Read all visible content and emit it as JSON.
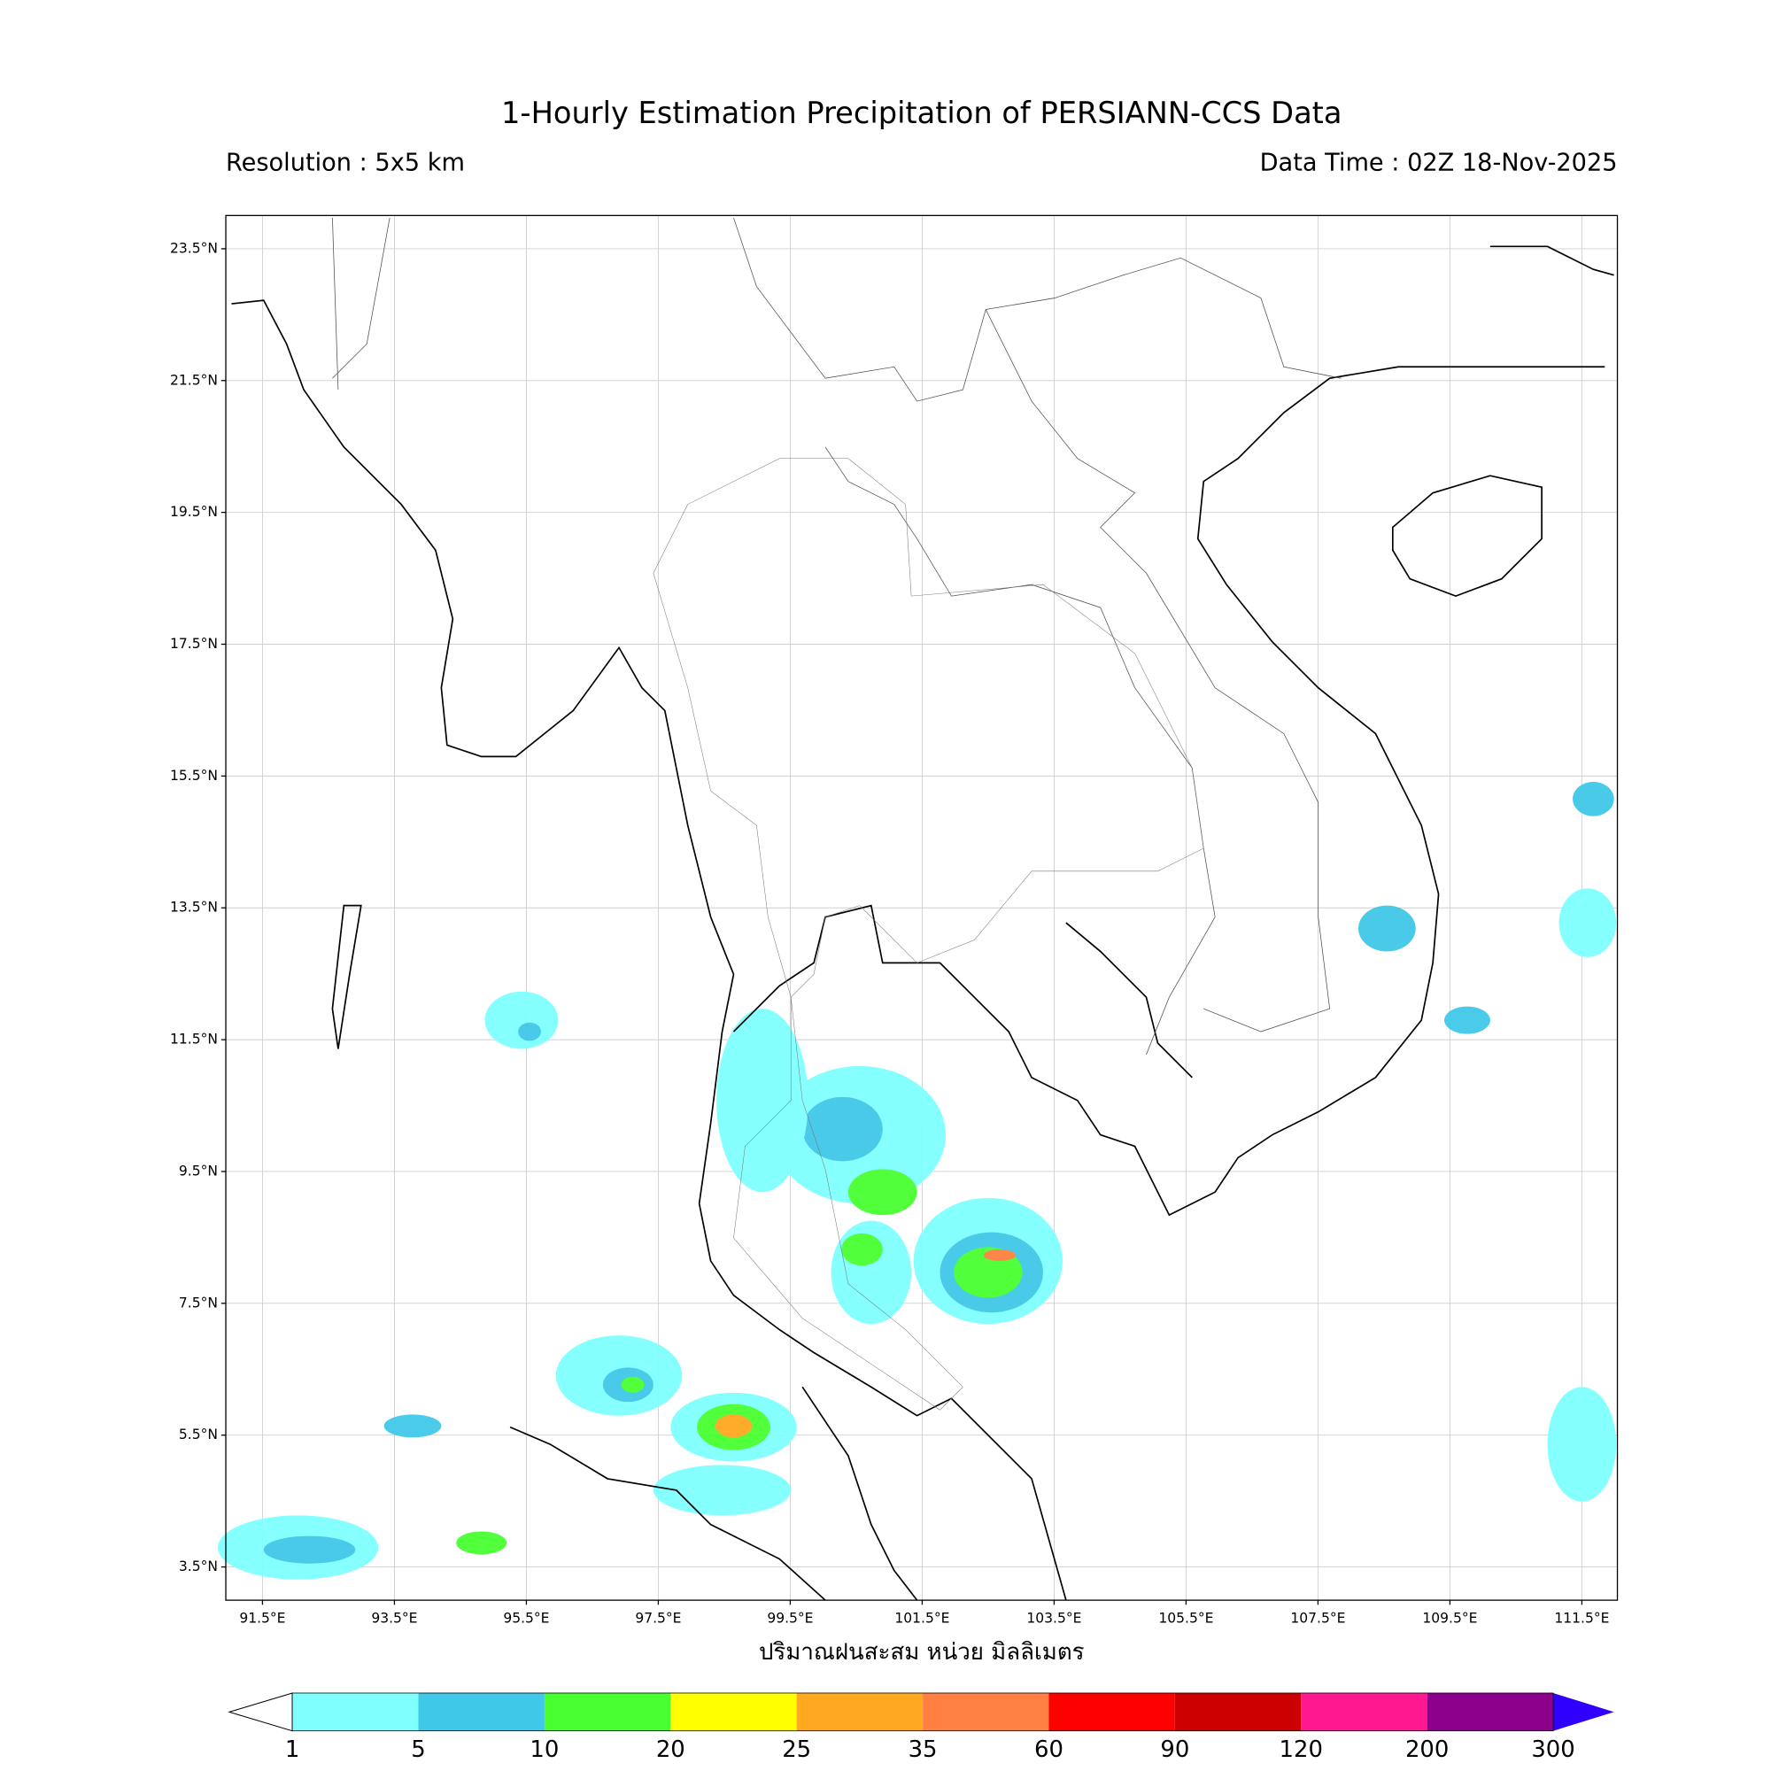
{
  "header": {
    "title": "1-Hourly Estimation Precipitation of PERSIANN-CCS Data",
    "resolution": "Resolution : 5x5 km",
    "data_time": "Data Time : 02Z 18-Nov-2025"
  },
  "map": {
    "longitude_labels": [
      "91.5°E",
      "93.5°E",
      "95.5°E",
      "97.5°E",
      "99.5°E",
      "101.5°E",
      "103.5°E",
      "105.5°E",
      "107.5°E",
      "109.5°E",
      "111.5°E"
    ],
    "latitude_labels": [
      "23.5°N",
      "21.5°N",
      "19.5°N",
      "17.5°N",
      "15.5°N",
      "13.5°N",
      "11.5°N",
      "9.5°N",
      "7.5°N",
      "5.5°N",
      "3.5°N"
    ],
    "x_label": "ปริมาณฝนสะสม หน่วย มิลลิเมตร"
  },
  "colorbar": {
    "levels": [
      "1",
      "5",
      "10",
      "20",
      "25",
      "35",
      "60",
      "90",
      "120",
      "200",
      "300"
    ],
    "colors": [
      "#80ffff",
      "#40c8e8",
      "#48ff30",
      "#ffff00",
      "#ffa820",
      "#ff8040",
      "#ff0000",
      "#cc0000",
      "#ff1890",
      "#8c008c"
    ],
    "over_color": "#3000ff"
  }
}
